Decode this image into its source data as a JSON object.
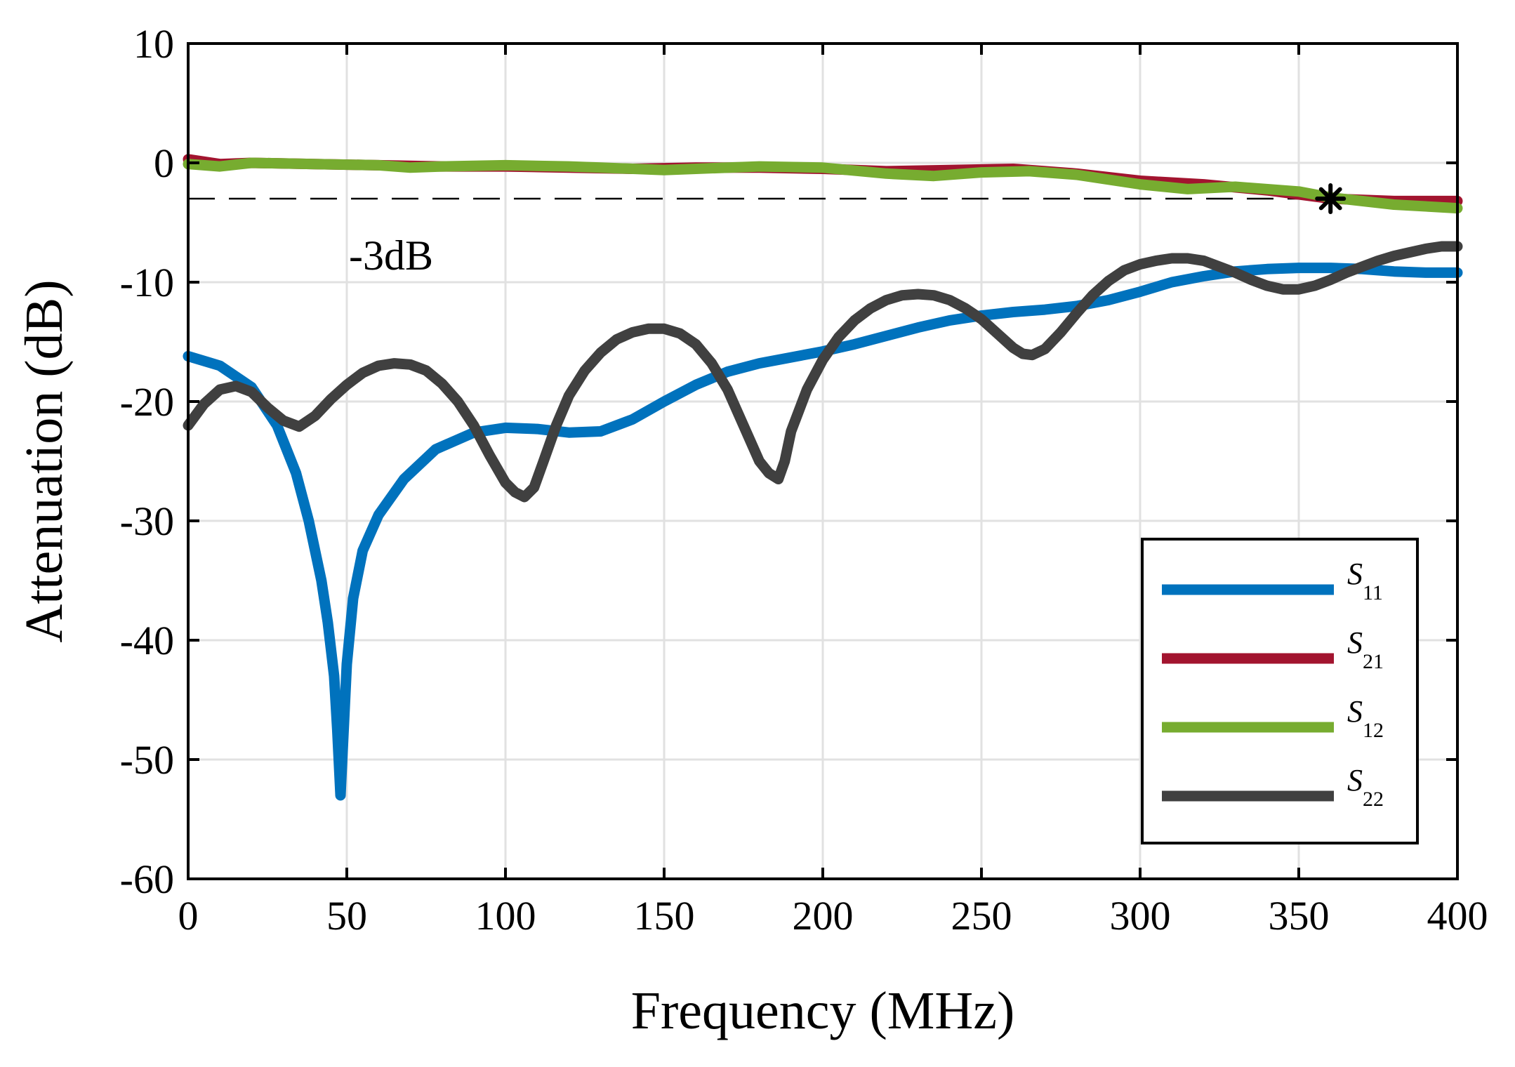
{
  "chart_data": {
    "type": "line",
    "title": "",
    "xlabel": "Frequency (MHz)",
    "ylabel": "Attenuation (dB)",
    "xlim": [
      0,
      400
    ],
    "ylim": [
      -60,
      10
    ],
    "xticks": [
      0,
      50,
      100,
      150,
      200,
      250,
      300,
      350,
      400
    ],
    "yticks": [
      10,
      0,
      -10,
      -20,
      -30,
      -40,
      -50,
      -60
    ],
    "xtick_labels": [
      "0",
      "50",
      "100",
      "150",
      "200",
      "250",
      "300",
      "350",
      "400"
    ],
    "ytick_labels": [
      "10",
      "0",
      "-10",
      "-20",
      "-30",
      "-40",
      "-50",
      "-60"
    ],
    "grid": true,
    "legend_position": "bottom-right",
    "annotations": {
      "threshold_label": "-3dB",
      "threshold_value": -3,
      "marker": {
        "symbol": "*",
        "x": 360,
        "y": -3
      }
    },
    "series": [
      {
        "name": "S11",
        "symbol": "S",
        "subscript": "11",
        "color": "#0072BD",
        "x": [
          0,
          10,
          20,
          28,
          34,
          38,
          42,
          44,
          46,
          47,
          48,
          49,
          50,
          52,
          55,
          60,
          68,
          78,
          90,
          100,
          110,
          120,
          130,
          140,
          150,
          160,
          170,
          180,
          190,
          200,
          210,
          220,
          230,
          240,
          250,
          260,
          270,
          280,
          290,
          300,
          310,
          320,
          330,
          340,
          350,
          360,
          370,
          380,
          390,
          400
        ],
        "y": [
          -16.2,
          -17.0,
          -18.8,
          -22.0,
          -26.0,
          -30.0,
          -35.0,
          -38.5,
          -43.0,
          -47.5,
          -53.0,
          -47.5,
          -42.0,
          -36.5,
          -32.5,
          -29.5,
          -26.5,
          -24.0,
          -22.6,
          -22.2,
          -22.3,
          -22.6,
          -22.5,
          -21.5,
          -20.0,
          -18.6,
          -17.5,
          -16.8,
          -16.3,
          -15.8,
          -15.2,
          -14.5,
          -13.8,
          -13.2,
          -12.8,
          -12.5,
          -12.3,
          -12.0,
          -11.5,
          -10.8,
          -10.0,
          -9.5,
          -9.1,
          -8.9,
          -8.8,
          -8.8,
          -8.9,
          -9.1,
          -9.2,
          -9.2
        ]
      },
      {
        "name": "S21",
        "symbol": "S",
        "subscript": "21",
        "color": "#A2142F",
        "x": [
          0,
          10,
          20,
          40,
          60,
          80,
          100,
          120,
          140,
          160,
          180,
          200,
          220,
          240,
          260,
          280,
          300,
          320,
          340,
          360,
          380,
          400
        ],
        "y": [
          0.3,
          -0.1,
          0.0,
          -0.1,
          -0.2,
          -0.3,
          -0.3,
          -0.4,
          -0.5,
          -0.4,
          -0.4,
          -0.5,
          -0.7,
          -0.6,
          -0.5,
          -0.9,
          -1.5,
          -1.8,
          -2.3,
          -3.0,
          -3.2,
          -3.2
        ]
      },
      {
        "name": "S12",
        "symbol": "S",
        "subscript": "12",
        "color": "#77AC30",
        "x": [
          0,
          10,
          20,
          40,
          60,
          70,
          80,
          100,
          120,
          130,
          150,
          160,
          180,
          200,
          220,
          235,
          250,
          265,
          280,
          300,
          315,
          330,
          350,
          360,
          380,
          400
        ],
        "y": [
          -0.1,
          -0.3,
          0.0,
          -0.1,
          -0.2,
          -0.4,
          -0.3,
          -0.2,
          -0.3,
          -0.4,
          -0.6,
          -0.5,
          -0.3,
          -0.4,
          -0.9,
          -1.1,
          -0.8,
          -0.7,
          -1.0,
          -1.8,
          -2.2,
          -2.0,
          -2.4,
          -2.9,
          -3.5,
          -3.8
        ]
      },
      {
        "name": "S22",
        "symbol": "S",
        "subscript": "22",
        "color": "#404040",
        "x": [
          0,
          5,
          10,
          15,
          20,
          25,
          30,
          35,
          40,
          45,
          50,
          55,
          60,
          65,
          70,
          75,
          80,
          85,
          90,
          95,
          100,
          103,
          106,
          109,
          112,
          116,
          120,
          125,
          130,
          135,
          140,
          145,
          150,
          155,
          160,
          165,
          170,
          175,
          180,
          183,
          186,
          188,
          190,
          195,
          200,
          205,
          210,
          215,
          220,
          225,
          230,
          235,
          240,
          245,
          250,
          255,
          260,
          263,
          266,
          270,
          275,
          280,
          285,
          290,
          295,
          300,
          305,
          310,
          315,
          320,
          325,
          330,
          335,
          340,
          345,
          350,
          355,
          360,
          365,
          370,
          375,
          380,
          385,
          390,
          395,
          400
        ],
        "y": [
          -22.0,
          -20.2,
          -19.0,
          -18.7,
          -19.2,
          -20.5,
          -21.6,
          -22.1,
          -21.2,
          -19.8,
          -18.6,
          -17.6,
          -17.0,
          -16.8,
          -16.9,
          -17.4,
          -18.5,
          -20.0,
          -22.0,
          -24.5,
          -26.8,
          -27.6,
          -28.0,
          -27.2,
          -25.0,
          -22.0,
          -19.5,
          -17.4,
          -15.9,
          -14.8,
          -14.2,
          -13.9,
          -13.9,
          -14.3,
          -15.2,
          -16.8,
          -19.0,
          -22.0,
          -25.0,
          -26.0,
          -26.5,
          -25.0,
          -22.5,
          -19.0,
          -16.5,
          -14.6,
          -13.2,
          -12.2,
          -11.5,
          -11.1,
          -11.0,
          -11.1,
          -11.5,
          -12.2,
          -13.1,
          -14.3,
          -15.5,
          -16.0,
          -16.1,
          -15.6,
          -14.2,
          -12.6,
          -11.1,
          -9.9,
          -9.0,
          -8.5,
          -8.2,
          -8.0,
          -8.0,
          -8.2,
          -8.7,
          -9.2,
          -9.8,
          -10.3,
          -10.6,
          -10.6,
          -10.3,
          -9.8,
          -9.2,
          -8.7,
          -8.2,
          -7.8,
          -7.5,
          -7.2,
          -7.0,
          -7.0
        ]
      }
    ]
  }
}
